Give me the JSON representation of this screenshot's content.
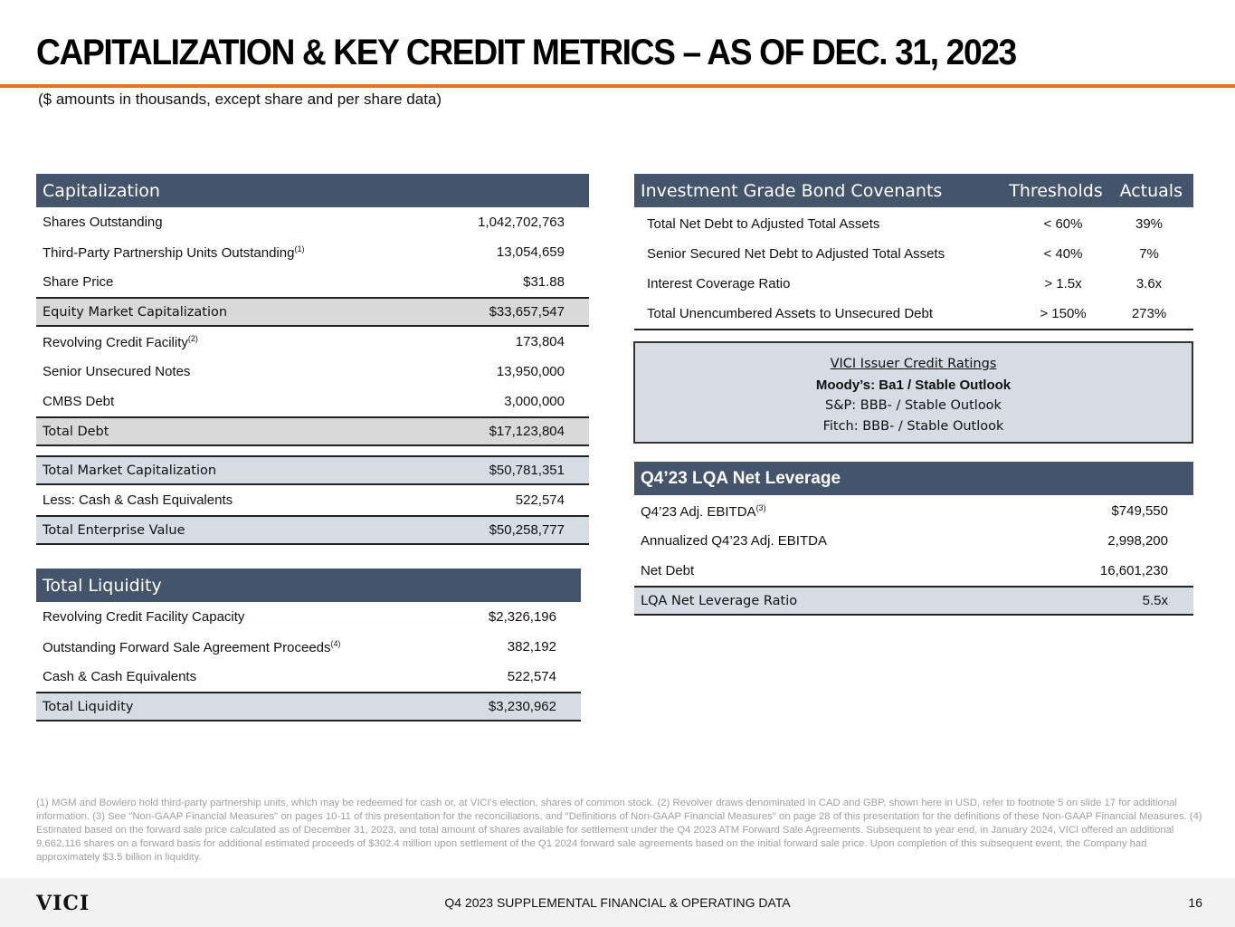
{
  "title": "CAPITALIZATION & KEY CREDIT METRICS – AS OF DEC. 31, 2023",
  "subtitle": "($ amounts in thousands, except share and per share data)",
  "capitalization": {
    "header": "Capitalization",
    "rows": [
      {
        "label": "Shares Outstanding",
        "sup": "",
        "value": "1,042,702,763"
      },
      {
        "label": "Third-Party Partnership Units Outstanding",
        "sup": "(1)",
        "value": "13,054,659"
      },
      {
        "label": "Share Price",
        "sup": "",
        "value": "$31.88"
      },
      {
        "label": "Equity Market Capitalization",
        "sup": "",
        "value": "$33,657,547"
      },
      {
        "label": "Revolving Credit Facility",
        "sup": "(2)",
        "value": "173,804"
      },
      {
        "label": "Senior Unsecured Notes",
        "sup": "",
        "value": "13,950,000"
      },
      {
        "label": "CMBS Debt",
        "sup": "",
        "value": "3,000,000"
      },
      {
        "label": "Total Debt",
        "sup": "",
        "value": "$17,123,804"
      }
    ],
    "rows2": [
      {
        "label": "Total Market Capitalization",
        "value": "$50,781,351"
      },
      {
        "label": "Less: Cash & Cash Equivalents",
        "value": "522,574"
      },
      {
        "label": "Total Enterprise Value",
        "value": "$50,258,777"
      }
    ]
  },
  "liquidity": {
    "header": "Total Liquidity",
    "rows": [
      {
        "label": "Revolving Credit Facility Capacity",
        "sup": "",
        "value": "$2,326,196"
      },
      {
        "label": "Outstanding Forward Sale Agreement Proceeds",
        "sup": "(4)",
        "value": "382,192"
      },
      {
        "label": "Cash & Cash Equivalents",
        "sup": "",
        "value": "522,574"
      },
      {
        "label": "Total Liquidity",
        "sup": "",
        "value": "$3,230,962"
      }
    ]
  },
  "covenants": {
    "headers": [
      "Investment Grade Bond Covenants",
      "Thresholds",
      "Actuals"
    ],
    "rows": [
      [
        "Total Net Debt to Adjusted Total Assets",
        "< 60%",
        "39%"
      ],
      [
        "Senior Secured Net Debt to Adjusted Total Assets",
        "< 40%",
        "7%"
      ],
      [
        "Interest Coverage Ratio",
        "> 1.5x",
        "3.6x"
      ],
      [
        "Total Unencumbered Assets to Unsecured Debt",
        "> 150%",
        "273%"
      ]
    ]
  },
  "ratings": {
    "title": "VICI Issuer Credit Ratings",
    "lines": [
      "Moody’s: Ba1 / Stable Outlook",
      "S&P: BBB- / Stable Outlook",
      "Fitch: BBB- / Stable Outlook"
    ]
  },
  "leverage": {
    "header": "Q4’23 LQA Net Leverage",
    "rows": [
      {
        "label": "Q4’23 Adj. EBITDA",
        "sup": "(3)",
        "value": "$749,550"
      },
      {
        "label": "Annualized Q4’23 Adj. EBITDA",
        "sup": "",
        "value": "2,998,200"
      },
      {
        "label": "Net Debt",
        "sup": "",
        "value": "16,601,230"
      },
      {
        "label": "LQA Net Leverage Ratio",
        "sup": "",
        "value": "5.5x"
      }
    ]
  },
  "footnote": "(1) MGM and Bowlero hold third-party partnership units, which may be redeemed for cash or, at VICI's election, shares of common stock. (2) Revolver draws denominated in CAD and GBP, shown here in USD, refer to footnote 5 on slide 17 for additional information. (3) See \"Non-GAAP Financial Measures\" on pages 10-11 of this presentation for the reconciliations, and \"Definitions of Non-GAAP Financial Measures\" on page 28 of this presentation for the definitions of these Non-GAAP Financial Measures. (4) Estimated based on the forward sale price calculated as of December 31, 2023, and total amount of shares available for settlement under the Q4 2023 ATM Forward Sale Agreements. Subsequent to year end, in January 2024, VICI offered an additional 9,662,116 shares on a forward basis for additional estimated proceeds of $302.4 million upon settlement of the Q1 2024 forward sale agreements based on the initial forward sale price. Upon completion of this subsequent event, the Company had approximately $3.5 billion in liquidity.",
  "footer": {
    "logo": "VICI",
    "text": "Q4 2023 SUPPLEMENTAL FINANCIAL & OPERATING DATA",
    "page": "16"
  },
  "colors": {
    "header": "#44546a",
    "accent": "#e8731c",
    "shade_gray": "#d9d9d9",
    "shade_blue": "#d6dce4"
  }
}
